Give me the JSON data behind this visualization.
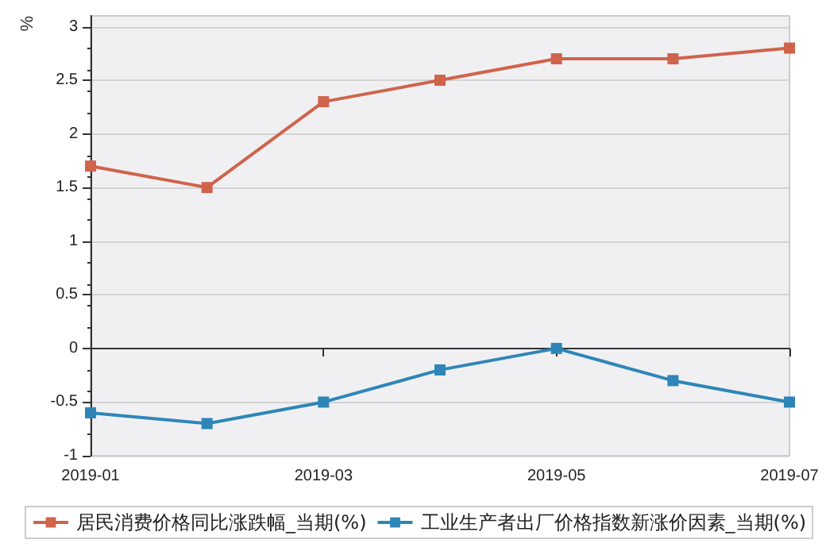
{
  "chart_data": {
    "type": "line",
    "ylabel": "%",
    "categories": [
      "2019-01",
      null,
      "2019-03",
      null,
      "2019-05",
      null,
      "2019-07"
    ],
    "series": [
      {
        "name": "居民消费价格同比涨跌幅_当期(%)",
        "color": "#d0634c",
        "values": [
          1.7,
          1.5,
          2.3,
          2.5,
          2.7,
          2.7,
          2.8
        ]
      },
      {
        "name": "工业生产者出厂价格指数新涨价因素_当期(%)",
        "color": "#2e86b8",
        "values": [
          -0.6,
          -0.7,
          -0.5,
          -0.2,
          0,
          -0.3,
          -0.5
        ]
      }
    ],
    "ylim": [
      -1,
      3.1
    ],
    "yticks": [
      -1,
      -0.5,
      0,
      0.5,
      1,
      1.5,
      2,
      2.5,
      3
    ],
    "grid": "y",
    "legend": "bottom",
    "marker": "square",
    "line_style": "solid"
  }
}
